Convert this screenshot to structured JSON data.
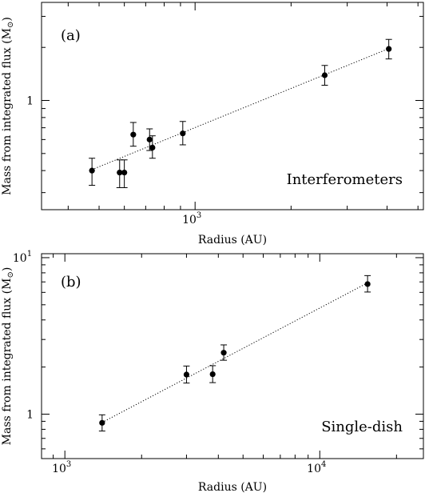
{
  "chart_data": [
    {
      "type": "scatter",
      "panel_label": "(a)",
      "annotation": "Interferometers",
      "xlabel": "Radius (AU)",
      "ylabel_main": "Mass from integrated flux (M",
      "ylabel_sub": "⊙",
      "ylabel_end": ")",
      "x_scale": "log",
      "y_scale": "log",
      "xlim": [
        330,
        5200
      ],
      "ylim": [
        0.24,
        3.6
      ],
      "x_ticklabels": [
        {
          "base": "10",
          "exp": "3",
          "value": 1000
        }
      ],
      "y_ticklabels": [
        {
          "text": "1",
          "value": 1
        }
      ],
      "points": [
        {
          "x": 475,
          "y": 0.4,
          "err_lo": 0.07,
          "err_hi": 0.07
        },
        {
          "x": 580,
          "y": 0.39,
          "err_lo": 0.07,
          "err_hi": 0.07
        },
        {
          "x": 600,
          "y": 0.39,
          "err_lo": 0.07,
          "err_hi": 0.07
        },
        {
          "x": 640,
          "y": 0.64,
          "err_lo": 0.09,
          "err_hi": 0.11
        },
        {
          "x": 720,
          "y": 0.6,
          "err_lo": 0.08,
          "err_hi": 0.09
        },
        {
          "x": 735,
          "y": 0.54,
          "err_lo": 0.07,
          "err_hi": 0.09
        },
        {
          "x": 915,
          "y": 0.65,
          "err_lo": 0.09,
          "err_hi": 0.11
        },
        {
          "x": 2550,
          "y": 1.39,
          "err_lo": 0.17,
          "err_hi": 0.19
        },
        {
          "x": 4050,
          "y": 1.96,
          "err_lo": 0.24,
          "err_hi": 0.26
        }
      ],
      "fit_line": {
        "x": [
          475,
          4050
        ],
        "y": [
          0.405,
          1.97
        ]
      }
    },
    {
      "type": "scatter",
      "panel_label": "(b)",
      "annotation": "Single-dish",
      "xlabel": "Radius (AU)",
      "ylabel_main": "Mass from integrated flux (M",
      "ylabel_sub": "⊙",
      "ylabel_end": ")",
      "x_scale": "log",
      "y_scale": "log",
      "xlim": [
        810,
        25500
      ],
      "ylim": [
        0.52,
        10.6
      ],
      "x_ticklabels": [
        {
          "base": "10",
          "exp": "3",
          "value": 1000
        },
        {
          "base": "10",
          "exp": "4",
          "value": 10000
        }
      ],
      "y_ticklabels": [
        {
          "text": "1",
          "value": 1
        }
      ],
      "y_top_ticklabel": {
        "base": "10",
        "exp": "1",
        "value": 10
      },
      "points": [
        {
          "x": 1400,
          "y": 0.88,
          "err_lo": 0.1,
          "err_hi": 0.11
        },
        {
          "x": 3000,
          "y": 1.79,
          "err_lo": 0.21,
          "err_hi": 0.24
        },
        {
          "x": 3800,
          "y": 1.8,
          "err_lo": 0.21,
          "err_hi": 0.24
        },
        {
          "x": 4200,
          "y": 2.47,
          "err_lo": 0.26,
          "err_hi": 0.3
        },
        {
          "x": 15400,
          "y": 6.78,
          "err_lo": 0.75,
          "err_hi": 0.9
        }
      ],
      "fit_line": {
        "x": [
          1400,
          15400
        ],
        "y": [
          0.885,
          6.9
        ]
      }
    }
  ]
}
